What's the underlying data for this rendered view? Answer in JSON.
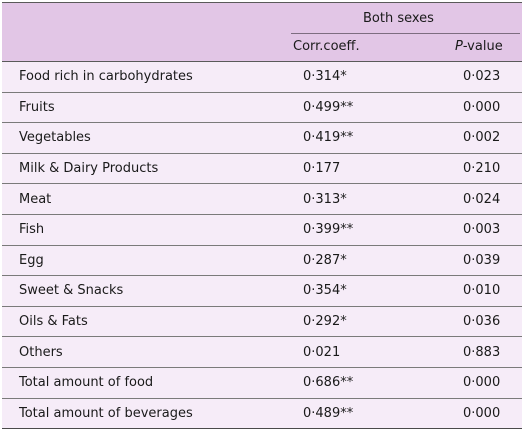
{
  "header": {
    "group_label": "Both sexes",
    "corr_label": "Corr.coeff.",
    "p_label_italic": "P",
    "p_label_rest": "-value"
  },
  "rows": [
    {
      "name": "Food rich in carbohydrates",
      "corr": "0·314*",
      "p": "0·023"
    },
    {
      "name": "Fruits",
      "corr": "0·499**",
      "p": "0·000"
    },
    {
      "name": "Vegetables",
      "corr": "0·419**",
      "p": "0·002"
    },
    {
      "name": "Milk & Dairy Products",
      "corr": "0·177",
      "p": "0·210"
    },
    {
      "name": "Meat",
      "corr": "0·313*",
      "p": "0·024"
    },
    {
      "name": "Fish",
      "corr": "0·399**",
      "p": "0·003"
    },
    {
      "name": "Egg",
      "corr": "0·287*",
      "p": "0·039"
    },
    {
      "name": "Sweet & Snacks",
      "corr": "0·354*",
      "p": "0·010"
    },
    {
      "name": "Oils & Fats",
      "corr": "0·292*",
      "p": "0·036"
    },
    {
      "name": "Others",
      "corr": "0·021",
      "p": "0·883"
    },
    {
      "name": "Total amount of food",
      "corr": "0·686**",
      "p": "0·000"
    },
    {
      "name": "Total amount of beverages",
      "corr": "0·489**",
      "p": "0·000"
    }
  ],
  "colors": {
    "header_bg": "#e2c6e6",
    "body_bg": "#f6ecf8",
    "rule": "#7a7a7a"
  }
}
